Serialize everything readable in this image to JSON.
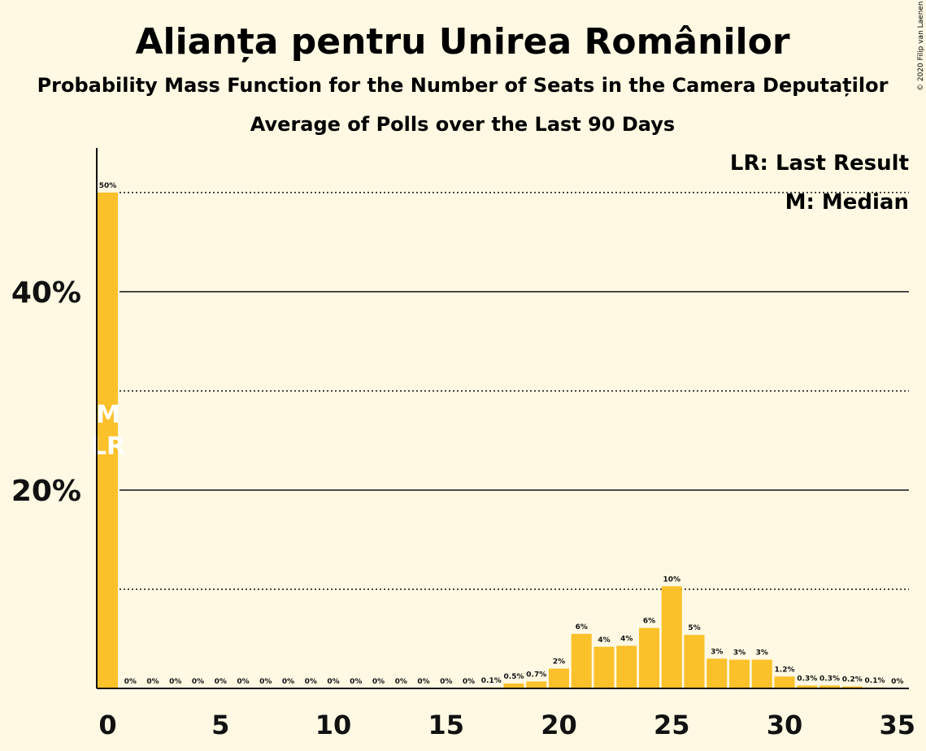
{
  "title": "Alianța pentru Unirea Românilor",
  "subtitle1": "Probability Mass Function for the Number of Seats in the Camera Deputaților",
  "subtitle2": "Average of Polls over the Last 90 Days",
  "legend": {
    "last_result": "LR: Last Result",
    "median": "M: Median"
  },
  "copyright": "© 2020 Filip van Laenen",
  "colors": {
    "background": "#FFF9E3",
    "bar": "#FBC12A",
    "text": "#111111"
  },
  "chart_data": {
    "type": "bar",
    "title": "Alianța pentru Unirea Românilor",
    "xlabel": "",
    "ylabel": "",
    "x": [
      0,
      1,
      2,
      3,
      4,
      5,
      6,
      7,
      8,
      9,
      10,
      11,
      12,
      13,
      14,
      15,
      16,
      17,
      18,
      19,
      20,
      21,
      22,
      23,
      24,
      25,
      26,
      27,
      28,
      29,
      30,
      31,
      32,
      33,
      34,
      35
    ],
    "values": [
      50,
      0,
      0,
      0,
      0,
      0,
      0,
      0,
      0,
      0,
      0,
      0,
      0,
      0,
      0,
      0,
      0,
      0.1,
      0.5,
      0.7,
      2,
      5.5,
      4.2,
      4.3,
      6.1,
      10.3,
      5.4,
      3,
      2.9,
      2.9,
      1.2,
      0.3,
      0.3,
      0.2,
      0.1,
      0
    ],
    "labels": [
      "50%",
      "0%",
      "0%",
      "0%",
      "0%",
      "0%",
      "0%",
      "0%",
      "0%",
      "0%",
      "0%",
      "0%",
      "0%",
      "0%",
      "0%",
      "0%",
      "0%",
      "0.1%",
      "0.5%",
      "0.7%",
      "2%",
      "6%",
      "4%",
      "4%",
      "6%",
      "10%",
      "5%",
      "3%",
      "3%",
      "3%",
      "1.2%",
      "0.3%",
      "0.3%",
      "0.2%",
      "0.1%",
      "0%"
    ],
    "xticks": [
      0,
      5,
      10,
      15,
      20,
      25,
      30,
      35
    ],
    "xtick_labels": [
      "0",
      "5",
      "10",
      "15",
      "20",
      "25",
      "30",
      "35"
    ],
    "yticks_labeled": [
      20,
      40
    ],
    "ytick_labels": [
      "20%",
      "40%"
    ],
    "gridlines_solid": [
      20,
      40
    ],
    "gridlines_dotted": [
      10,
      30,
      50
    ],
    "ylim": [
      0,
      54.5
    ],
    "median_seat": 0,
    "last_result_seat": 0,
    "median_marker": "M",
    "last_result_marker": "LR",
    "legend_position": "top-right"
  }
}
